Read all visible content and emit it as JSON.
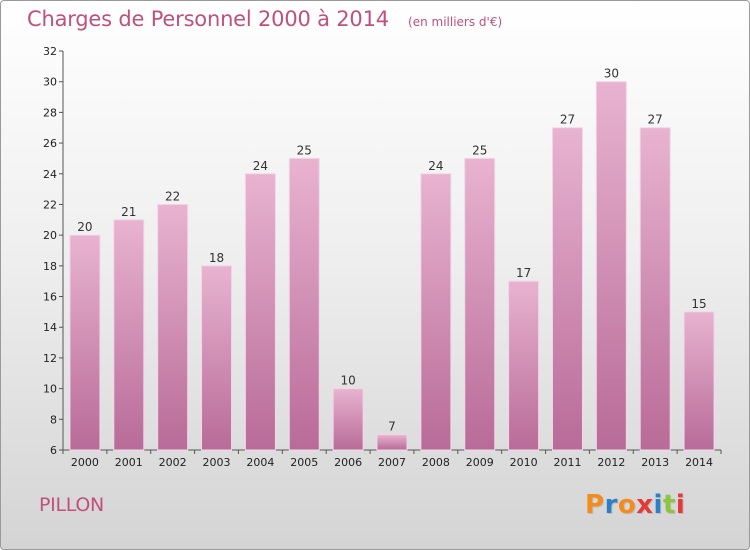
{
  "title": "Charges de Personnel 2000 à 2014",
  "subtitle": "(en milliers d'€)",
  "commune": "PILLON",
  "brand": {
    "letters": [
      "P",
      "r",
      "o",
      "x",
      "i",
      "t",
      "i"
    ],
    "colors": [
      "#f28c1e",
      "#2c7ec7",
      "#f28c1e",
      "#e53935",
      "#2c7ec7",
      "#8cc63f",
      "#e53935"
    ]
  },
  "colors": {
    "bar_light": "#e8b3d0",
    "bar_dark": "#b86b98",
    "text_accent": "#c0507c"
  },
  "chart_data": {
    "type": "bar",
    "categories": [
      "2000",
      "2001",
      "2002",
      "2003",
      "2004",
      "2005",
      "2006",
      "2007",
      "2008",
      "2009",
      "2010",
      "2011",
      "2012",
      "2013",
      "2014"
    ],
    "values": [
      20,
      21,
      22,
      18,
      24,
      25,
      10,
      7,
      24,
      25,
      17,
      27,
      30,
      27,
      15
    ],
    "ylim": [
      6,
      32
    ],
    "yticks": [
      6,
      8,
      10,
      12,
      14,
      16,
      18,
      20,
      22,
      24,
      26,
      28,
      30,
      32
    ],
    "grid": false
  }
}
